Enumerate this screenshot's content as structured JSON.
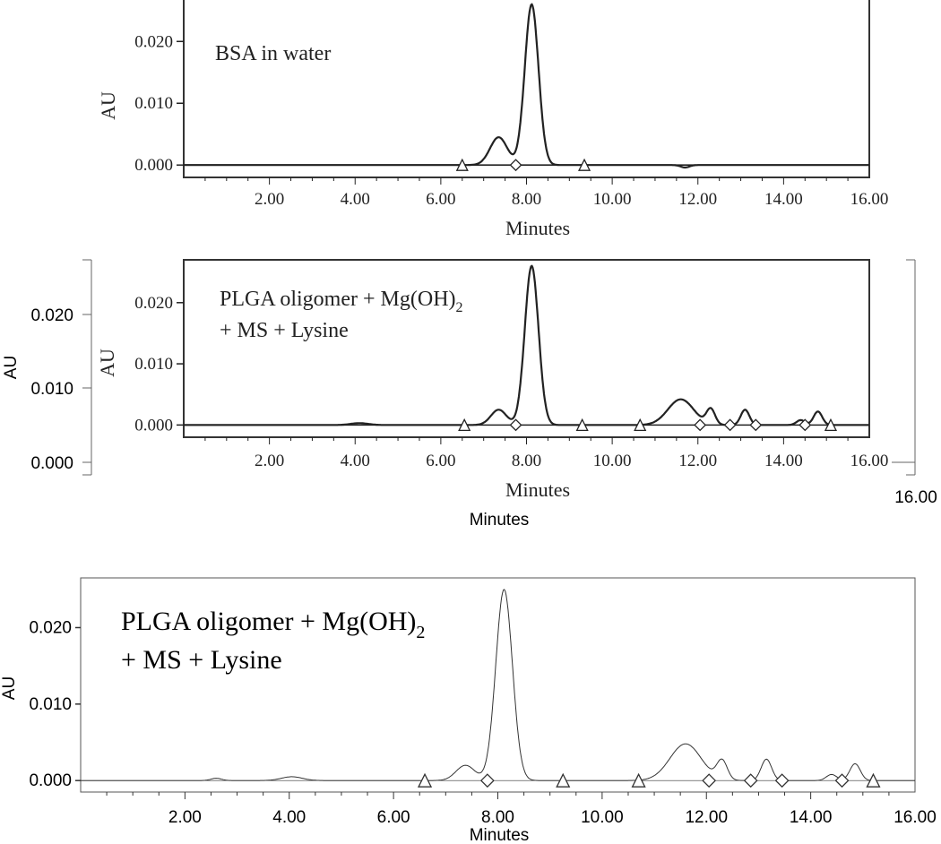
{
  "chart_data": [
    {
      "type": "line",
      "annotation": "BSA in water",
      "xlabel": "Minutes",
      "ylabel": "AU",
      "xlim": [
        0,
        16
      ],
      "ylim": [
        -0.002,
        0.027
      ],
      "x_ticks": [
        "2.00",
        "4.00",
        "6.00",
        "8.00",
        "10.00",
        "12.00",
        "14.00",
        "16.00"
      ],
      "y_ticks": [
        "0.000",
        "0.010",
        "0.020"
      ],
      "peaks": [
        {
          "rt": 7.35,
          "height": 0.0045,
          "width": 0.2
        },
        {
          "rt": 8.12,
          "height": 0.026,
          "width": 0.16
        },
        {
          "rt": 11.7,
          "height": -0.0004,
          "width": 0.1
        }
      ],
      "markers": [
        {
          "shape": "triangle",
          "x": 6.5
        },
        {
          "shape": "diamond",
          "x": 7.75
        },
        {
          "shape": "triangle",
          "x": 9.35
        }
      ]
    },
    {
      "type": "line",
      "annotation": [
        "PLGA oligomer + Mg(OH)",
        "2",
        "+ MS + Lysine"
      ],
      "xlabel": "Minutes",
      "ylabel": "AU",
      "xlim": [
        0,
        16
      ],
      "ylim": [
        -0.002,
        0.027
      ],
      "x_ticks": [
        "2.00",
        "4.00",
        "6.00",
        "8.00",
        "10.00",
        "12.00",
        "14.00",
        "16.00"
      ],
      "y_ticks": [
        "0.000",
        "0.010",
        "0.020"
      ],
      "outer_y_ticks": [
        "0.000",
        "0.010",
        "0.020"
      ],
      "outer_ylabel": "AU",
      "outer_xlabel": "Minutes",
      "outer_x_tick_last": "16.00",
      "peaks": [
        {
          "rt": 4.1,
          "height": 0.0003,
          "width": 0.2
        },
        {
          "rt": 7.35,
          "height": 0.0025,
          "width": 0.18
        },
        {
          "rt": 8.12,
          "height": 0.026,
          "width": 0.16
        },
        {
          "rt": 11.6,
          "height": 0.0042,
          "width": 0.3
        },
        {
          "rt": 12.3,
          "height": 0.0025,
          "width": 0.1
        },
        {
          "rt": 13.1,
          "height": 0.0025,
          "width": 0.1
        },
        {
          "rt": 14.4,
          "height": 0.0008,
          "width": 0.1
        },
        {
          "rt": 14.8,
          "height": 0.0022,
          "width": 0.1
        }
      ],
      "markers": [
        {
          "shape": "triangle",
          "x": 6.55
        },
        {
          "shape": "diamond",
          "x": 7.75
        },
        {
          "shape": "triangle",
          "x": 9.3
        },
        {
          "shape": "triangle",
          "x": 10.65
        },
        {
          "shape": "diamond",
          "x": 12.05
        },
        {
          "shape": "diamond",
          "x": 12.75
        },
        {
          "shape": "diamond",
          "x": 13.35
        },
        {
          "shape": "diamond",
          "x": 14.5
        },
        {
          "shape": "triangle",
          "x": 15.1
        }
      ]
    },
    {
      "type": "line",
      "annotation": [
        "PLGA oligomer + Mg(OH)",
        "2",
        "+ MS + Lysine"
      ],
      "xlabel": "Minutes",
      "ylabel": "AU",
      "xlim": [
        0,
        16
      ],
      "ylim": [
        -0.0015,
        0.0265
      ],
      "x_ticks": [
        "2.00",
        "4.00",
        "6.00",
        "8.00",
        "10.00",
        "12.00",
        "14.00",
        "16.00"
      ],
      "y_ticks": [
        "0.000",
        "0.010",
        "0.020"
      ],
      "peaks": [
        {
          "rt": 2.6,
          "height": 0.0003,
          "width": 0.1
        },
        {
          "rt": 4.05,
          "height": 0.0005,
          "width": 0.2
        },
        {
          "rt": 7.38,
          "height": 0.002,
          "width": 0.18
        },
        {
          "rt": 8.12,
          "height": 0.025,
          "width": 0.16
        },
        {
          "rt": 11.6,
          "height": 0.0048,
          "width": 0.3
        },
        {
          "rt": 12.3,
          "height": 0.0025,
          "width": 0.1
        },
        {
          "rt": 13.15,
          "height": 0.0028,
          "width": 0.1
        },
        {
          "rt": 14.4,
          "height": 0.0008,
          "width": 0.1
        },
        {
          "rt": 14.85,
          "height": 0.0022,
          "width": 0.1
        }
      ],
      "markers": [
        {
          "shape": "triangle",
          "x": 6.6
        },
        {
          "shape": "diamond",
          "x": 7.8
        },
        {
          "shape": "triangle",
          "x": 9.25
        },
        {
          "shape": "triangle",
          "x": 10.7
        },
        {
          "shape": "diamond",
          "x": 12.05
        },
        {
          "shape": "diamond",
          "x": 12.85
        },
        {
          "shape": "diamond",
          "x": 13.45
        },
        {
          "shape": "diamond",
          "x": 14.6
        },
        {
          "shape": "triangle",
          "x": 15.2
        }
      ]
    }
  ]
}
